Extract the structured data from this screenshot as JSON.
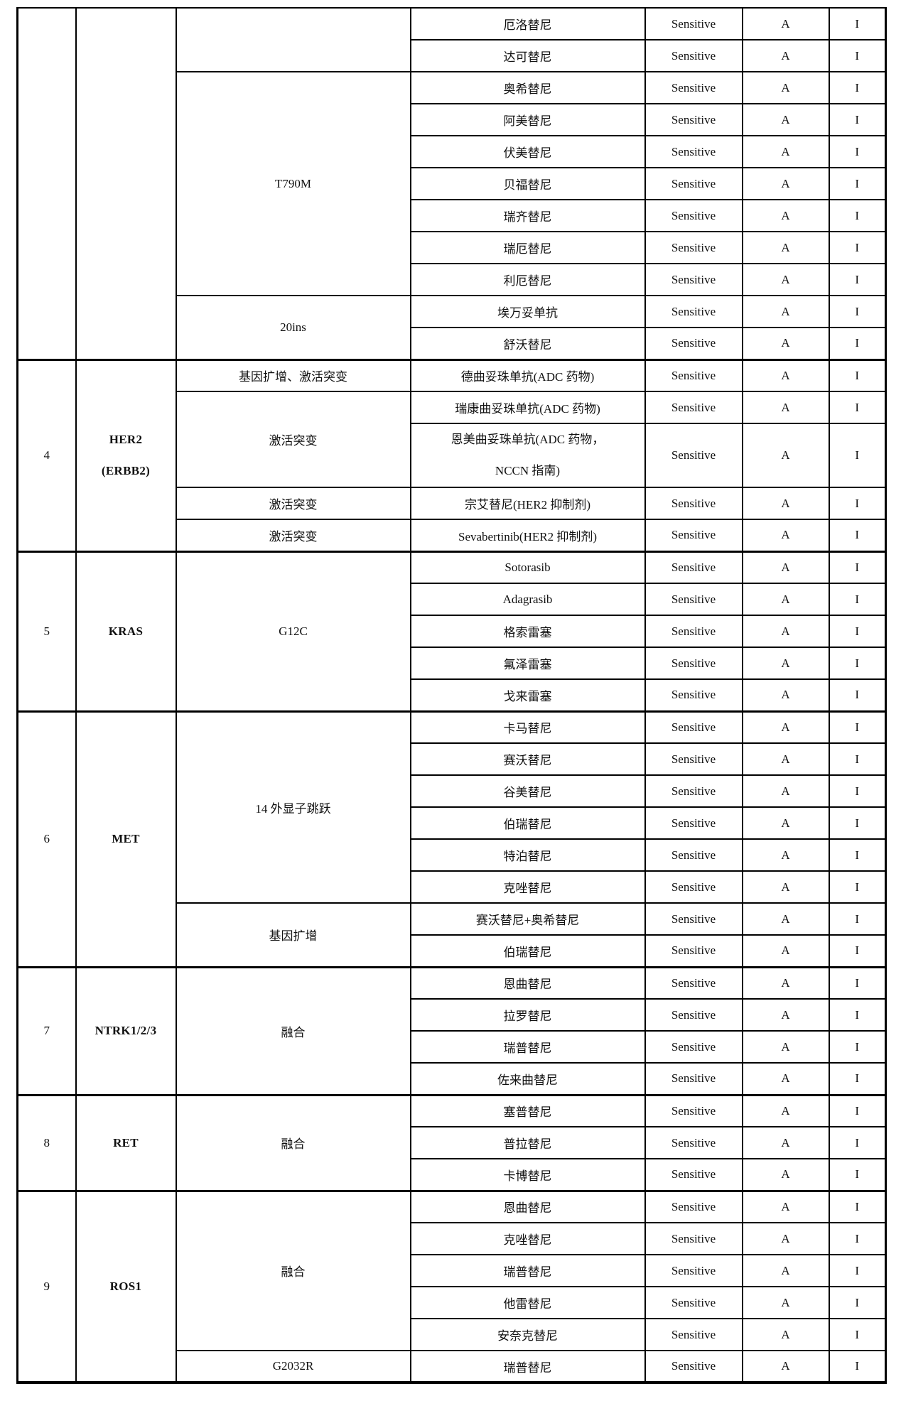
{
  "page": {
    "background": "#ffffff",
    "border_color": "#000000",
    "text_color": "#111111"
  },
  "table": {
    "columns": [
      "index",
      "gene",
      "mutation",
      "drug",
      "sensitivity",
      "evidence_level",
      "tier"
    ],
    "groups": [
      {
        "index": "",
        "gene_lines": [],
        "subgroups": [
          {
            "mutation_lines": [],
            "rows": [
              {
                "drug_lines": [
                  "厄洛替尼"
                ],
                "sensitivity": "Sensitive",
                "evidence": "A",
                "tier": "I"
              },
              {
                "drug_lines": [
                  "达可替尼"
                ],
                "sensitivity": "Sensitive",
                "evidence": "A",
                "tier": "I"
              }
            ]
          },
          {
            "mutation_lines": [
              "T790M"
            ],
            "rows": [
              {
                "drug_lines": [
                  "奥希替尼"
                ],
                "sensitivity": "Sensitive",
                "evidence": "A",
                "tier": "I"
              },
              {
                "drug_lines": [
                  "阿美替尼"
                ],
                "sensitivity": "Sensitive",
                "evidence": "A",
                "tier": "I"
              },
              {
                "drug_lines": [
                  "伏美替尼"
                ],
                "sensitivity": "Sensitive",
                "evidence": "A",
                "tier": "I"
              },
              {
                "drug_lines": [
                  "贝福替尼"
                ],
                "sensitivity": "Sensitive",
                "evidence": "A",
                "tier": "I"
              },
              {
                "drug_lines": [
                  "瑞齐替尼"
                ],
                "sensitivity": "Sensitive",
                "evidence": "A",
                "tier": "I"
              },
              {
                "drug_lines": [
                  "瑞厄替尼"
                ],
                "sensitivity": "Sensitive",
                "evidence": "A",
                "tier": "I"
              },
              {
                "drug_lines": [
                  "利厄替尼"
                ],
                "sensitivity": "Sensitive",
                "evidence": "A",
                "tier": "I"
              }
            ]
          },
          {
            "mutation_lines": [
              "20ins"
            ],
            "rows": [
              {
                "drug_lines": [
                  "埃万妥单抗"
                ],
                "sensitivity": "Sensitive",
                "evidence": "A",
                "tier": "I"
              },
              {
                "drug_lines": [
                  "舒沃替尼"
                ],
                "sensitivity": "Sensitive",
                "evidence": "A",
                "tier": "I"
              }
            ]
          }
        ]
      },
      {
        "index": "4",
        "gene_lines": [
          "HER2",
          "(ERBB2)"
        ],
        "subgroups": [
          {
            "mutation_lines": [
              "基因扩增、激活突变"
            ],
            "rows": [
              {
                "drug_lines": [
                  "德曲妥珠单抗(ADC 药物)"
                ],
                "sensitivity": "Sensitive",
                "evidence": "A",
                "tier": "I"
              }
            ]
          },
          {
            "mutation_lines": [
              "激活突变"
            ],
            "rows": [
              {
                "drug_lines": [
                  "瑞康曲妥珠单抗(ADC 药物)"
                ],
                "sensitivity": "Sensitive",
                "evidence": "A",
                "tier": "I"
              },
              {
                "drug_lines": [
                  "恩美曲妥珠单抗(ADC 药物，",
                  "NCCN 指南)"
                ],
                "tall": true,
                "sensitivity": "Sensitive",
                "evidence": "A",
                "tier": "I"
              }
            ]
          },
          {
            "mutation_lines": [
              "激活突变"
            ],
            "rows": [
              {
                "drug_lines": [
                  "宗艾替尼(HER2 抑制剂)"
                ],
                "sensitivity": "Sensitive",
                "evidence": "A",
                "tier": "I"
              }
            ]
          },
          {
            "mutation_lines": [
              "激活突变"
            ],
            "rows": [
              {
                "drug_lines": [
                  "Sevabertinib(HER2 抑制剂)"
                ],
                "sensitivity": "Sensitive",
                "evidence": "A",
                "tier": "I"
              }
            ]
          }
        ]
      },
      {
        "index": "5",
        "gene_lines": [
          "KRAS"
        ],
        "subgroups": [
          {
            "mutation_lines": [
              "G12C"
            ],
            "rows": [
              {
                "drug_lines": [
                  "Sotorasib"
                ],
                "sensitivity": "Sensitive",
                "evidence": "A",
                "tier": "I"
              },
              {
                "drug_lines": [
                  "Adagrasib"
                ],
                "sensitivity": "Sensitive",
                "evidence": "A",
                "tier": "I"
              },
              {
                "drug_lines": [
                  "格索雷塞"
                ],
                "sensitivity": "Sensitive",
                "evidence": "A",
                "tier": "I"
              },
              {
                "drug_lines": [
                  "氟泽雷塞"
                ],
                "sensitivity": "Sensitive",
                "evidence": "A",
                "tier": "I"
              },
              {
                "drug_lines": [
                  "戈来雷塞"
                ],
                "sensitivity": "Sensitive",
                "evidence": "A",
                "tier": "I"
              }
            ]
          }
        ]
      },
      {
        "index": "6",
        "gene_lines": [
          "MET"
        ],
        "subgroups": [
          {
            "mutation_lines": [
              "14 外显子跳跃"
            ],
            "rows": [
              {
                "drug_lines": [
                  "卡马替尼"
                ],
                "sensitivity": "Sensitive",
                "evidence": "A",
                "tier": "I"
              },
              {
                "drug_lines": [
                  "赛沃替尼"
                ],
                "sensitivity": "Sensitive",
                "evidence": "A",
                "tier": "I"
              },
              {
                "drug_lines": [
                  "谷美替尼"
                ],
                "sensitivity": "Sensitive",
                "evidence": "A",
                "tier": "I"
              },
              {
                "drug_lines": [
                  "伯瑞替尼"
                ],
                "sensitivity": "Sensitive",
                "evidence": "A",
                "tier": "I"
              },
              {
                "drug_lines": [
                  "特泊替尼"
                ],
                "sensitivity": "Sensitive",
                "evidence": "A",
                "tier": "I"
              },
              {
                "drug_lines": [
                  "克唑替尼"
                ],
                "sensitivity": "Sensitive",
                "evidence": "A",
                "tier": "I"
              }
            ]
          },
          {
            "mutation_lines": [
              "基因扩增"
            ],
            "rows": [
              {
                "drug_lines": [
                  "赛沃替尼+奥希替尼"
                ],
                "sensitivity": "Sensitive",
                "evidence": "A",
                "tier": "I"
              },
              {
                "drug_lines": [
                  "伯瑞替尼"
                ],
                "sensitivity": "Sensitive",
                "evidence": "A",
                "tier": "I"
              }
            ]
          }
        ]
      },
      {
        "index": "7",
        "gene_lines": [
          "NTRK1/2/3"
        ],
        "subgroups": [
          {
            "mutation_lines": [
              "融合"
            ],
            "rows": [
              {
                "drug_lines": [
                  "恩曲替尼"
                ],
                "sensitivity": "Sensitive",
                "evidence": "A",
                "tier": "I"
              },
              {
                "drug_lines": [
                  "拉罗替尼"
                ],
                "sensitivity": "Sensitive",
                "evidence": "A",
                "tier": "I"
              },
              {
                "drug_lines": [
                  "瑞普替尼"
                ],
                "sensitivity": "Sensitive",
                "evidence": "A",
                "tier": "I"
              },
              {
                "drug_lines": [
                  "佐来曲替尼"
                ],
                "sensitivity": "Sensitive",
                "evidence": "A",
                "tier": "I"
              }
            ]
          }
        ]
      },
      {
        "index": "8",
        "gene_lines": [
          "RET"
        ],
        "subgroups": [
          {
            "mutation_lines": [
              "融合"
            ],
            "rows": [
              {
                "drug_lines": [
                  "塞普替尼"
                ],
                "sensitivity": "Sensitive",
                "evidence": "A",
                "tier": "I"
              },
              {
                "drug_lines": [
                  "普拉替尼"
                ],
                "sensitivity": "Sensitive",
                "evidence": "A",
                "tier": "I"
              },
              {
                "drug_lines": [
                  "卡博替尼"
                ],
                "sensitivity": "Sensitive",
                "evidence": "A",
                "tier": "I"
              }
            ]
          }
        ]
      },
      {
        "index": "9",
        "gene_lines": [
          "ROS1"
        ],
        "subgroups": [
          {
            "mutation_lines": [
              "融合"
            ],
            "rows": [
              {
                "drug_lines": [
                  "恩曲替尼"
                ],
                "sensitivity": "Sensitive",
                "evidence": "A",
                "tier": "I"
              },
              {
                "drug_lines": [
                  "克唑替尼"
                ],
                "sensitivity": "Sensitive",
                "evidence": "A",
                "tier": "I"
              },
              {
                "drug_lines": [
                  "瑞普替尼"
                ],
                "sensitivity": "Sensitive",
                "evidence": "A",
                "tier": "I"
              },
              {
                "drug_lines": [
                  "他雷替尼"
                ],
                "sensitivity": "Sensitive",
                "evidence": "A",
                "tier": "I"
              },
              {
                "drug_lines": [
                  "安奈克替尼"
                ],
                "sensitivity": "Sensitive",
                "evidence": "A",
                "tier": "I"
              }
            ]
          },
          {
            "mutation_lines": [
              "G2032R"
            ],
            "rows": [
              {
                "drug_lines": [
                  "瑞普替尼"
                ],
                "sensitivity": "Sensitive",
                "evidence": "A",
                "tier": "I"
              }
            ]
          }
        ]
      }
    ]
  }
}
